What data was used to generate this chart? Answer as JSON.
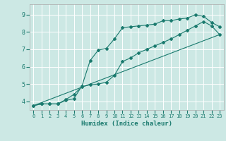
{
  "xlabel": "Humidex (Indice chaleur)",
  "background_color": "#cce8e4",
  "grid_color": "#ffffff",
  "line_color": "#1a7a6e",
  "xlim": [
    -0.5,
    23.5
  ],
  "ylim": [
    3.5,
    9.6
  ],
  "xticks": [
    0,
    1,
    2,
    3,
    4,
    5,
    6,
    7,
    8,
    9,
    10,
    11,
    12,
    13,
    14,
    15,
    16,
    17,
    18,
    19,
    20,
    21,
    22,
    23
  ],
  "yticks": [
    4,
    5,
    6,
    7,
    8,
    9
  ],
  "line1_x": [
    0,
    1,
    2,
    3,
    4,
    5,
    6,
    7,
    8,
    9,
    10,
    11,
    12,
    13,
    14,
    15,
    16,
    17,
    18,
    19,
    20,
    21,
    22,
    23
  ],
  "line1_y": [
    3.75,
    3.85,
    3.85,
    3.85,
    4.05,
    4.15,
    4.9,
    6.35,
    6.95,
    7.05,
    7.6,
    8.25,
    8.3,
    8.35,
    8.4,
    8.45,
    8.65,
    8.65,
    8.75,
    8.8,
    9.0,
    8.9,
    8.55,
    8.3
  ],
  "line2_x": [
    0,
    1,
    2,
    3,
    4,
    5,
    6,
    7,
    8,
    9,
    10,
    11,
    12,
    13,
    14,
    15,
    16,
    17,
    18,
    19,
    20,
    21,
    22,
    23
  ],
  "line2_y": [
    3.75,
    3.85,
    3.85,
    3.85,
    4.1,
    4.4,
    4.85,
    4.95,
    5.0,
    5.1,
    5.5,
    6.3,
    6.5,
    6.8,
    7.0,
    7.2,
    7.4,
    7.6,
    7.85,
    8.1,
    8.35,
    8.6,
    8.35,
    7.85
  ],
  "line3_x": [
    0,
    23
  ],
  "line3_y": [
    3.75,
    7.85
  ]
}
